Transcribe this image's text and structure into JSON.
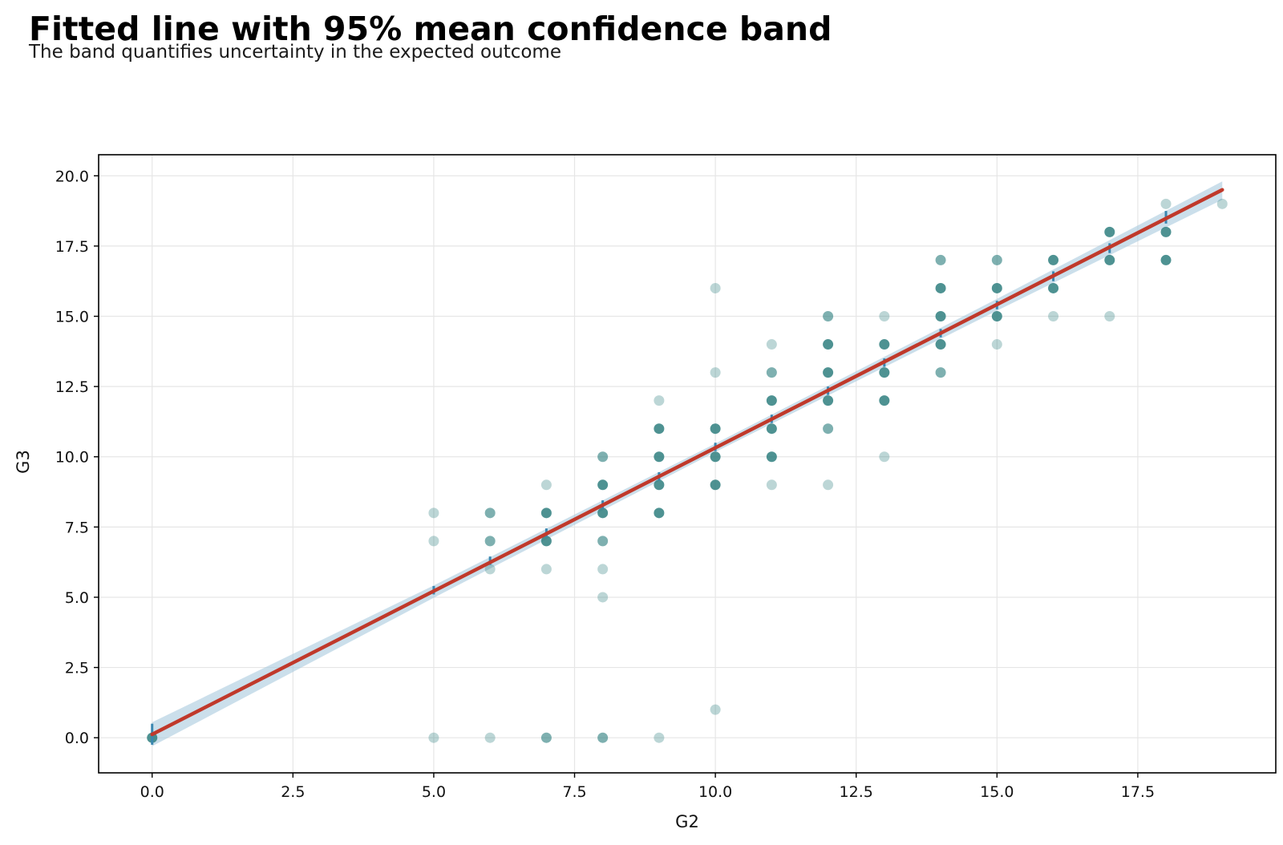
{
  "chart_data": {
    "type": "scatter",
    "title": "Fitted line with 95% mean confidence band",
    "subtitle": "The band quantifies uncertainty in the expected outcome",
    "xlabel": "G2",
    "ylabel": "G3",
    "xlim": [
      -0.95,
      19.95
    ],
    "ylim": [
      -1.25,
      20.75
    ],
    "xticks": [
      0.0,
      2.5,
      5.0,
      7.5,
      10.0,
      12.5,
      15.0,
      17.5
    ],
    "xtick_labels": [
      "0.0",
      "2.5",
      "5.0",
      "7.5",
      "10.0",
      "12.5",
      "15.0",
      "17.5"
    ],
    "yticks": [
      0.0,
      2.5,
      5.0,
      7.5,
      10.0,
      12.5,
      15.0,
      17.5,
      20.0
    ],
    "ytick_labels": [
      "0.0",
      "2.5",
      "5.0",
      "7.5",
      "10.0",
      "12.5",
      "15.0",
      "17.5",
      "20.0"
    ],
    "grid": true,
    "fit_line": {
      "slope": 1.02,
      "intercept": 0.12,
      "x_range": [
        0,
        19
      ]
    },
    "confidence_band": [
      {
        "x": 0,
        "lower": -0.3,
        "upper": 0.55
      },
      {
        "x": 5,
        "lower": 4.98,
        "upper": 5.42
      },
      {
        "x": 10,
        "lower": 10.17,
        "upper": 10.47
      },
      {
        "x": 15,
        "lower": 15.2,
        "upper": 15.62
      },
      {
        "x": 19,
        "lower": 19.15,
        "upper": 19.8
      }
    ],
    "mean_ticks": [
      {
        "x": 0,
        "y_low": -0.25,
        "y_high": 0.5
      },
      {
        "x": 5,
        "y_low": 5.1,
        "y_high": 5.4
      },
      {
        "x": 6,
        "y_low": 6.15,
        "y_high": 6.45
      },
      {
        "x": 7,
        "y_low": 7.15,
        "y_high": 7.45
      },
      {
        "x": 8,
        "y_low": 8.15,
        "y_high": 8.45
      },
      {
        "x": 9,
        "y_low": 9.15,
        "y_high": 9.45
      },
      {
        "x": 10,
        "y_low": 10.2,
        "y_high": 10.5
      },
      {
        "x": 11,
        "y_low": 11.2,
        "y_high": 11.5
      },
      {
        "x": 12,
        "y_low": 12.2,
        "y_high": 12.5
      },
      {
        "x": 13,
        "y_low": 13.2,
        "y_high": 13.5
      },
      {
        "x": 14,
        "y_low": 14.25,
        "y_high": 14.55
      },
      {
        "x": 15,
        "y_low": 15.25,
        "y_high": 15.55
      },
      {
        "x": 16,
        "y_low": 16.25,
        "y_high": 16.6
      },
      {
        "x": 17,
        "y_low": 17.25,
        "y_high": 17.6
      },
      {
        "x": 18,
        "y_low": 18.3,
        "y_high": 18.75
      }
    ],
    "points": [
      {
        "x": 0,
        "y": 0,
        "w": 3
      },
      {
        "x": 5,
        "y": 0,
        "w": 1
      },
      {
        "x": 5,
        "y": 7,
        "w": 1
      },
      {
        "x": 5,
        "y": 8,
        "w": 1
      },
      {
        "x": 6,
        "y": 0,
        "w": 1
      },
      {
        "x": 6,
        "y": 6,
        "w": 1
      },
      {
        "x": 6,
        "y": 7,
        "w": 2
      },
      {
        "x": 6,
        "y": 8,
        "w": 2
      },
      {
        "x": 7,
        "y": 0,
        "w": 2
      },
      {
        "x": 7,
        "y": 6,
        "w": 1
      },
      {
        "x": 7,
        "y": 7,
        "w": 3
      },
      {
        "x": 7,
        "y": 8,
        "w": 3
      },
      {
        "x": 7,
        "y": 9,
        "w": 1
      },
      {
        "x": 8,
        "y": 0,
        "w": 2
      },
      {
        "x": 8,
        "y": 5,
        "w": 1
      },
      {
        "x": 8,
        "y": 6,
        "w": 1
      },
      {
        "x": 8,
        "y": 7,
        "w": 2
      },
      {
        "x": 8,
        "y": 8,
        "w": 3
      },
      {
        "x": 8,
        "y": 9,
        "w": 3
      },
      {
        "x": 8,
        "y": 10,
        "w": 2
      },
      {
        "x": 9,
        "y": 0,
        "w": 1
      },
      {
        "x": 9,
        "y": 8,
        "w": 3
      },
      {
        "x": 9,
        "y": 9,
        "w": 3
      },
      {
        "x": 9,
        "y": 10,
        "w": 3
      },
      {
        "x": 9,
        "y": 11,
        "w": 3
      },
      {
        "x": 9,
        "y": 12,
        "w": 1
      },
      {
        "x": 10,
        "y": 1,
        "w": 1
      },
      {
        "x": 10,
        "y": 9,
        "w": 3
      },
      {
        "x": 10,
        "y": 10,
        "w": 3
      },
      {
        "x": 10,
        "y": 11,
        "w": 3
      },
      {
        "x": 10,
        "y": 13,
        "w": 1
      },
      {
        "x": 10,
        "y": 16,
        "w": 1
      },
      {
        "x": 11,
        "y": 9,
        "w": 1
      },
      {
        "x": 11,
        "y": 10,
        "w": 3
      },
      {
        "x": 11,
        "y": 11,
        "w": 3
      },
      {
        "x": 11,
        "y": 12,
        "w": 3
      },
      {
        "x": 11,
        "y": 13,
        "w": 2
      },
      {
        "x": 11,
        "y": 14,
        "w": 1
      },
      {
        "x": 12,
        "y": 9,
        "w": 1
      },
      {
        "x": 12,
        "y": 11,
        "w": 2
      },
      {
        "x": 12,
        "y": 12,
        "w": 3
      },
      {
        "x": 12,
        "y": 13,
        "w": 3
      },
      {
        "x": 12,
        "y": 14,
        "w": 3
      },
      {
        "x": 12,
        "y": 15,
        "w": 2
      },
      {
        "x": 13,
        "y": 10,
        "w": 1
      },
      {
        "x": 13,
        "y": 12,
        "w": 3
      },
      {
        "x": 13,
        "y": 13,
        "w": 3
      },
      {
        "x": 13,
        "y": 14,
        "w": 3
      },
      {
        "x": 13,
        "y": 15,
        "w": 1
      },
      {
        "x": 14,
        "y": 13,
        "w": 2
      },
      {
        "x": 14,
        "y": 14,
        "w": 3
      },
      {
        "x": 14,
        "y": 15,
        "w": 3
      },
      {
        "x": 14,
        "y": 16,
        "w": 3
      },
      {
        "x": 14,
        "y": 17,
        "w": 2
      },
      {
        "x": 15,
        "y": 14,
        "w": 1
      },
      {
        "x": 15,
        "y": 15,
        "w": 3
      },
      {
        "x": 15,
        "y": 16,
        "w": 3
      },
      {
        "x": 15,
        "y": 17,
        "w": 2
      },
      {
        "x": 16,
        "y": 15,
        "w": 1
      },
      {
        "x": 16,
        "y": 16,
        "w": 3
      },
      {
        "x": 16,
        "y": 17,
        "w": 3
      },
      {
        "x": 17,
        "y": 15,
        "w": 1
      },
      {
        "x": 17,
        "y": 17,
        "w": 3
      },
      {
        "x": 17,
        "y": 18,
        "w": 3
      },
      {
        "x": 18,
        "y": 17,
        "w": 3
      },
      {
        "x": 18,
        "y": 18,
        "w": 3
      },
      {
        "x": 18,
        "y": 19,
        "w": 1
      },
      {
        "x": 19,
        "y": 19,
        "w": 1
      }
    ],
    "colors": {
      "points": "#2f7f7f",
      "fit_line": "#c0392b",
      "band": "#a9c9dd",
      "mean_ticks": "#3a87b0",
      "grid": "#e6e6e6",
      "axes": "#000000"
    }
  }
}
